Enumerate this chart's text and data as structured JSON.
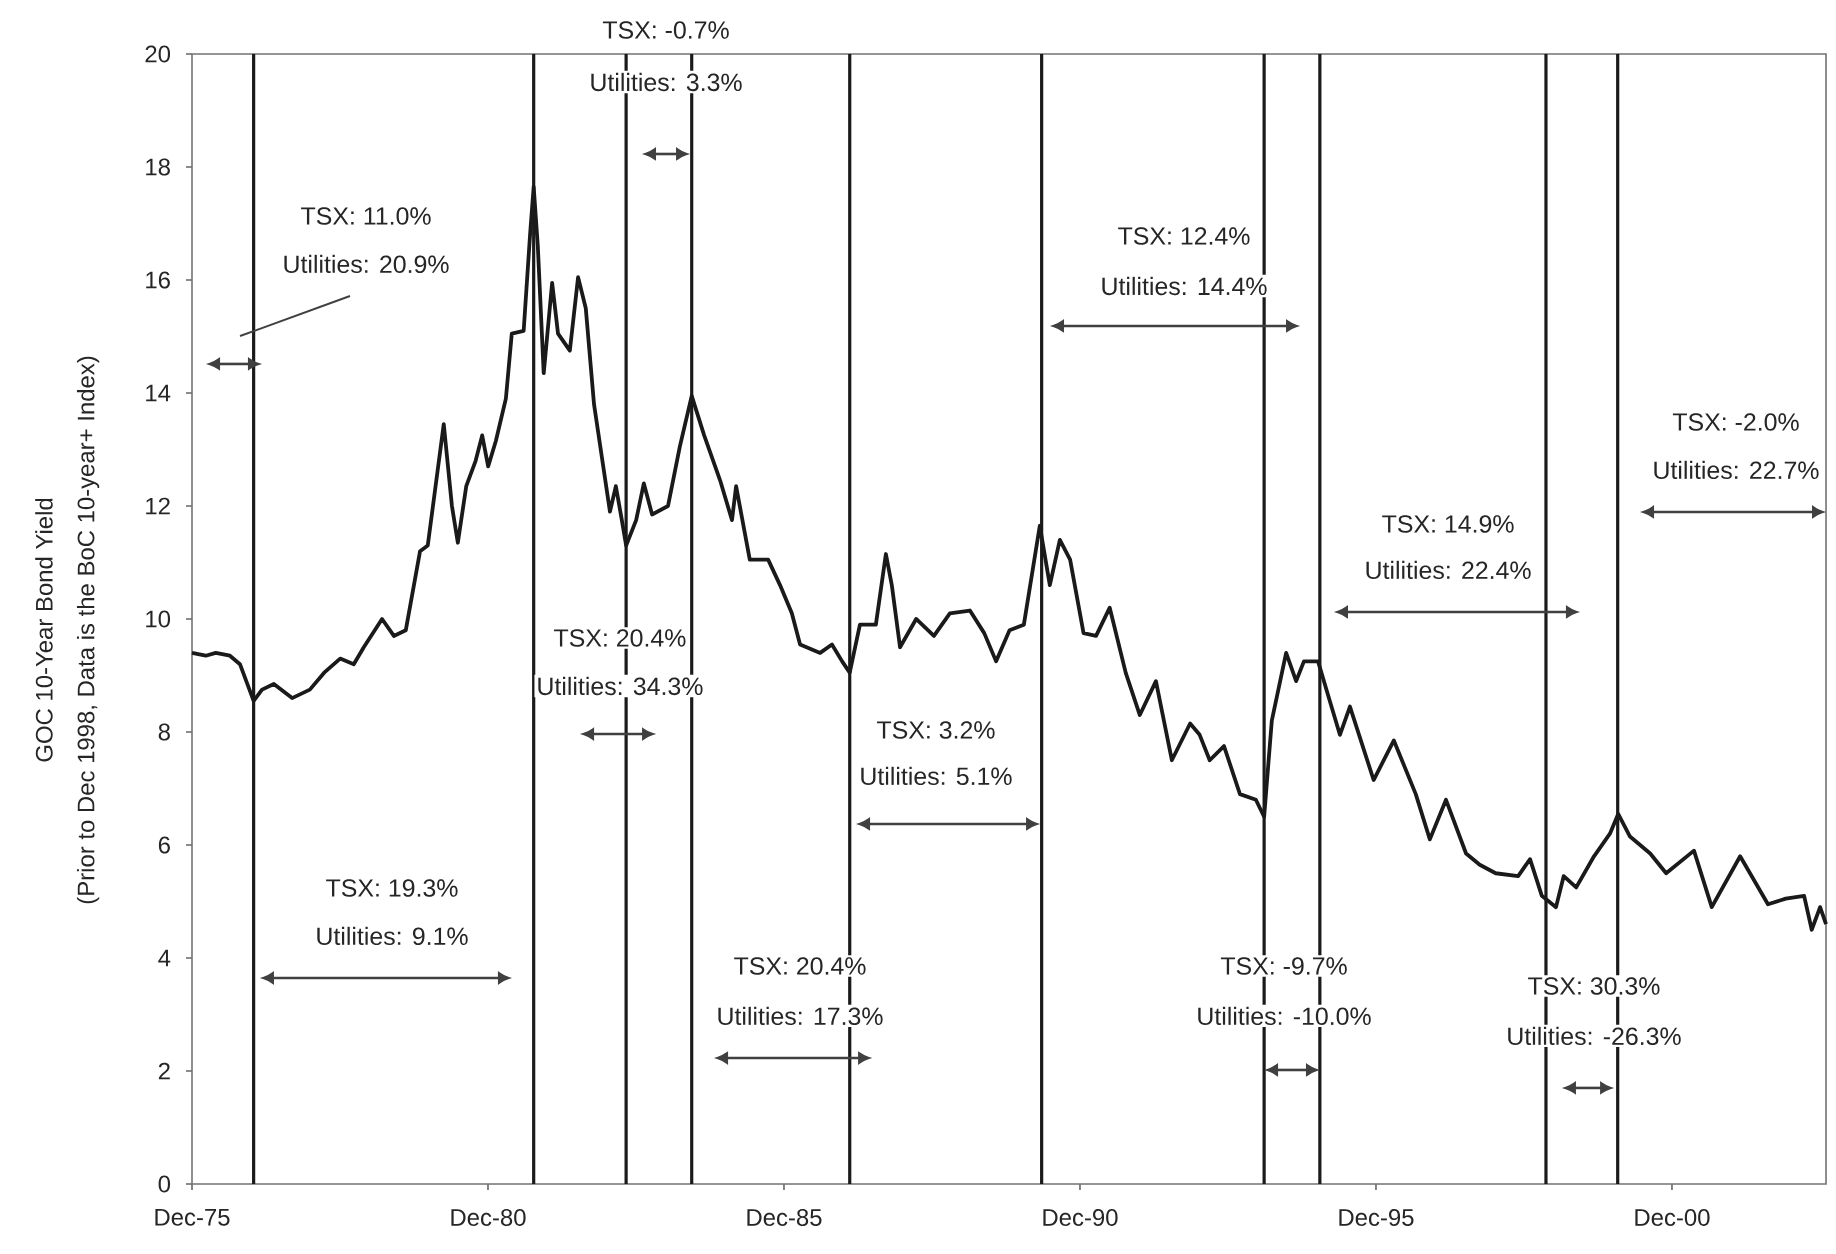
{
  "chart_data": {
    "type": "line",
    "ylabel": "GOC 10-Year Bond Yield",
    "x": [
      "1975-12-01",
      "1976-02-25",
      "1976-04-26",
      "1976-07-22",
      "1976-09-23",
      "1976-12-16",
      "1977-02-07",
      "1977-04-19",
      "1977-08-10",
      "1977-11-28",
      "1978-02-25",
      "1978-06-02",
      "1978-08-25",
      "1978-10-26",
      "1979-02-17",
      "1979-04-29",
      "1979-07-11",
      "1979-10-08",
      "1979-11-25",
      "1980-03-02",
      "1980-04-22",
      "1980-05-28",
      "1980-07-19",
      "1980-09-16",
      "1980-10-26",
      "1980-12-02",
      "1981-01-19",
      "1981-03-20",
      "1981-04-26",
      "1981-07-08",
      "1981-08-17",
      "1981-09-09",
      "1981-10-04",
      "1981-11-10",
      "1982-01-01",
      "1982-02-07",
      "1982-04-19",
      "1982-06-09",
      "1982-07-26",
      "1982-09-16",
      "1982-12-23",
      "1983-01-29",
      "1983-03-05",
      "1983-04-01",
      "1983-06-02",
      "1983-07-19",
      "1983-09-09",
      "1983-12-16",
      "1984-02-28",
      "1984-05-10",
      "1984-07-26",
      "1984-11-03",
      "1985-01-15",
      "1985-02-10",
      "1985-05-03",
      "1985-08-25",
      "1985-11-07",
      "1986-01-19",
      "1986-03-09",
      "1986-07-11",
      "1986-09-23",
      "1986-11-25",
      "1987-01-11",
      "1987-03-13",
      "1987-06-20",
      "1987-08-21",
      "1987-09-27",
      "1987-11-17",
      "1988-02-25",
      "1988-06-13",
      "1988-09-20",
      "1989-01-22",
      "1989-04-19",
      "1989-07-01",
      "1989-09-23",
      "1989-12-20",
      "1990-03-27",
      "1990-05-28",
      "1990-07-29",
      "1990-10-01",
      "1990-12-23",
      "1991-03-09",
      "1991-06-02",
      "1991-09-09",
      "1991-12-05",
      "1992-03-13",
      "1992-06-20",
      "1992-10-11",
      "1992-12-09",
      "1993-02-10",
      "1993-05-07",
      "1993-08-14",
      "1993-11-21",
      "1994-01-11",
      "1994-02-28",
      "1994-05-25",
      "1994-07-26",
      "1994-09-13",
      "1994-12-09",
      "1995-02-10",
      "1995-04-22",
      "1995-06-23",
      "1995-11-17",
      "1996-03-20",
      "1996-08-03",
      "1996-10-29",
      "1997-02-07",
      "1997-06-09",
      "1997-09-02",
      "1997-12-09",
      "1998-04-26",
      "1998-07-08",
      "1998-09-20",
      "1998-12-16",
      "1999-02-03",
      "1999-04-19",
      "1999-08-07",
      "1999-11-14",
      "2000-01-04",
      "2000-03-16",
      "2000-07-19",
      "2000-10-26",
      "2001-04-15",
      "2001-08-03",
      "2002-01-26",
      "2002-07-15",
      "2002-11-03",
      "2003-02-25",
      "2003-04-11",
      "2003-06-02",
      "2003-07-08"
    ],
    "series": [
      {
        "color": "#1a1a1a",
        "values": [
          9.4,
          9.35,
          9.4,
          9.35,
          9.2,
          8.55,
          8.75,
          8.85,
          8.6,
          8.75,
          9.05,
          9.3,
          9.2,
          9.5,
          10.0,
          9.7,
          9.8,
          11.2,
          11.3,
          13.45,
          12.0,
          11.35,
          12.35,
          12.8,
          13.25,
          12.7,
          13.15,
          13.9,
          15.05,
          15.1,
          16.8,
          17.65,
          16.6,
          14.35,
          15.95,
          15.05,
          14.75,
          16.05,
          15.5,
          13.8,
          11.9,
          12.35,
          11.75,
          11.3,
          11.75,
          12.4,
          11.85,
          12.0,
          13.05,
          13.95,
          13.25,
          12.45,
          11.75,
          12.35,
          11.05,
          11.05,
          10.6,
          10.1,
          9.55,
          9.4,
          9.55,
          9.25,
          9.05,
          9.9,
          9.9,
          11.15,
          10.6,
          9.5,
          10.0,
          9.7,
          10.1,
          10.15,
          9.75,
          9.25,
          9.8,
          9.9,
          11.65,
          10.6,
          11.4,
          11.05,
          9.75,
          9.7,
          10.2,
          9.05,
          8.3,
          8.9,
          7.5,
          8.15,
          7.95,
          7.5,
          7.75,
          6.9,
          6.8,
          6.5,
          8.2,
          9.4,
          8.9,
          9.25,
          9.25,
          8.65,
          7.95,
          8.45,
          7.15,
          7.85,
          6.9,
          6.1,
          6.8,
          5.85,
          5.65,
          5.5,
          5.45,
          5.75,
          5.1,
          4.9,
          5.45,
          5.25,
          5.8,
          6.2,
          6.55,
          6.15,
          5.85,
          5.5,
          5.9,
          4.9,
          5.8,
          4.95,
          5.05,
          5.1,
          4.5,
          4.9,
          4.6
        ]
      }
    ],
    "xlim": [
      "1975-12-01",
      "2003-07-08"
    ],
    "ylim": [
      0,
      20
    ],
    "xticks": [
      {
        "value": "1975-12",
        "label": "Dec-75"
      },
      {
        "value": "1980-12",
        "label": "Dec-80"
      },
      {
        "value": "1985-12",
        "label": "Dec-85"
      },
      {
        "value": "1990-12",
        "label": "Dec-90"
      },
      {
        "value": "1995-12",
        "label": "Dec-95"
      },
      {
        "value": "2000-12",
        "label": "Dec-00"
      }
    ],
    "yticks": [
      0,
      2,
      4,
      6,
      8,
      10,
      12,
      14,
      16,
      18,
      20
    ],
    "ref_lines": [
      {
        "axis": "x",
        "value": "1976-12-16",
        "color": "#1a1a1a"
      },
      {
        "axis": "x",
        "value": "1981-09-09",
        "color": "#1a1a1a"
      },
      {
        "axis": "x",
        "value": "1983-04-01",
        "color": "#1a1a1a"
      },
      {
        "axis": "x",
        "value": "1984-05-10",
        "color": "#1a1a1a"
      },
      {
        "axis": "x",
        "value": "1987-01-11",
        "color": "#1a1a1a"
      },
      {
        "axis": "x",
        "value": "1990-04-08",
        "color": "#1a1a1a"
      },
      {
        "axis": "x",
        "value": "1994-01-11",
        "color": "#1a1a1a"
      },
      {
        "axis": "x",
        "value": "1994-12-20",
        "color": "#1a1a1a"
      },
      {
        "axis": "x",
        "value": "1998-10-15",
        "color": "#1a1a1a"
      },
      {
        "axis": "x",
        "value": "2000-01-01",
        "color": "#1a1a1a"
      }
    ],
    "annotations": [
      "TSX: 11.0%",
      "Utilities: 20.9%",
      "TSX: 19.3%",
      "Utilities: 9.1%",
      "TSX: 20.4%",
      "Utilities: 34.3%",
      "TSX: -0.7%",
      "Utilities: 3.3%",
      "TSX: 20.4%",
      "Utilities: 17.3%",
      "TSX: 3.2%",
      "Utilities: 5.1%",
      "TSX: 12.4%",
      "Utilities: 14.4%",
      "TSX: -9.7%",
      "Utilities: -10.0%",
      "TSX: 14.9%",
      "Utilities: 22.4%",
      "TSX: 30.3%",
      "Utilities: -26.3%",
      "TSX: -2.0%",
      "Utilities: 22.7%",
      "(Prior to Dec 1998, Data is the BoC 10-year+ Index)"
    ]
  }
}
